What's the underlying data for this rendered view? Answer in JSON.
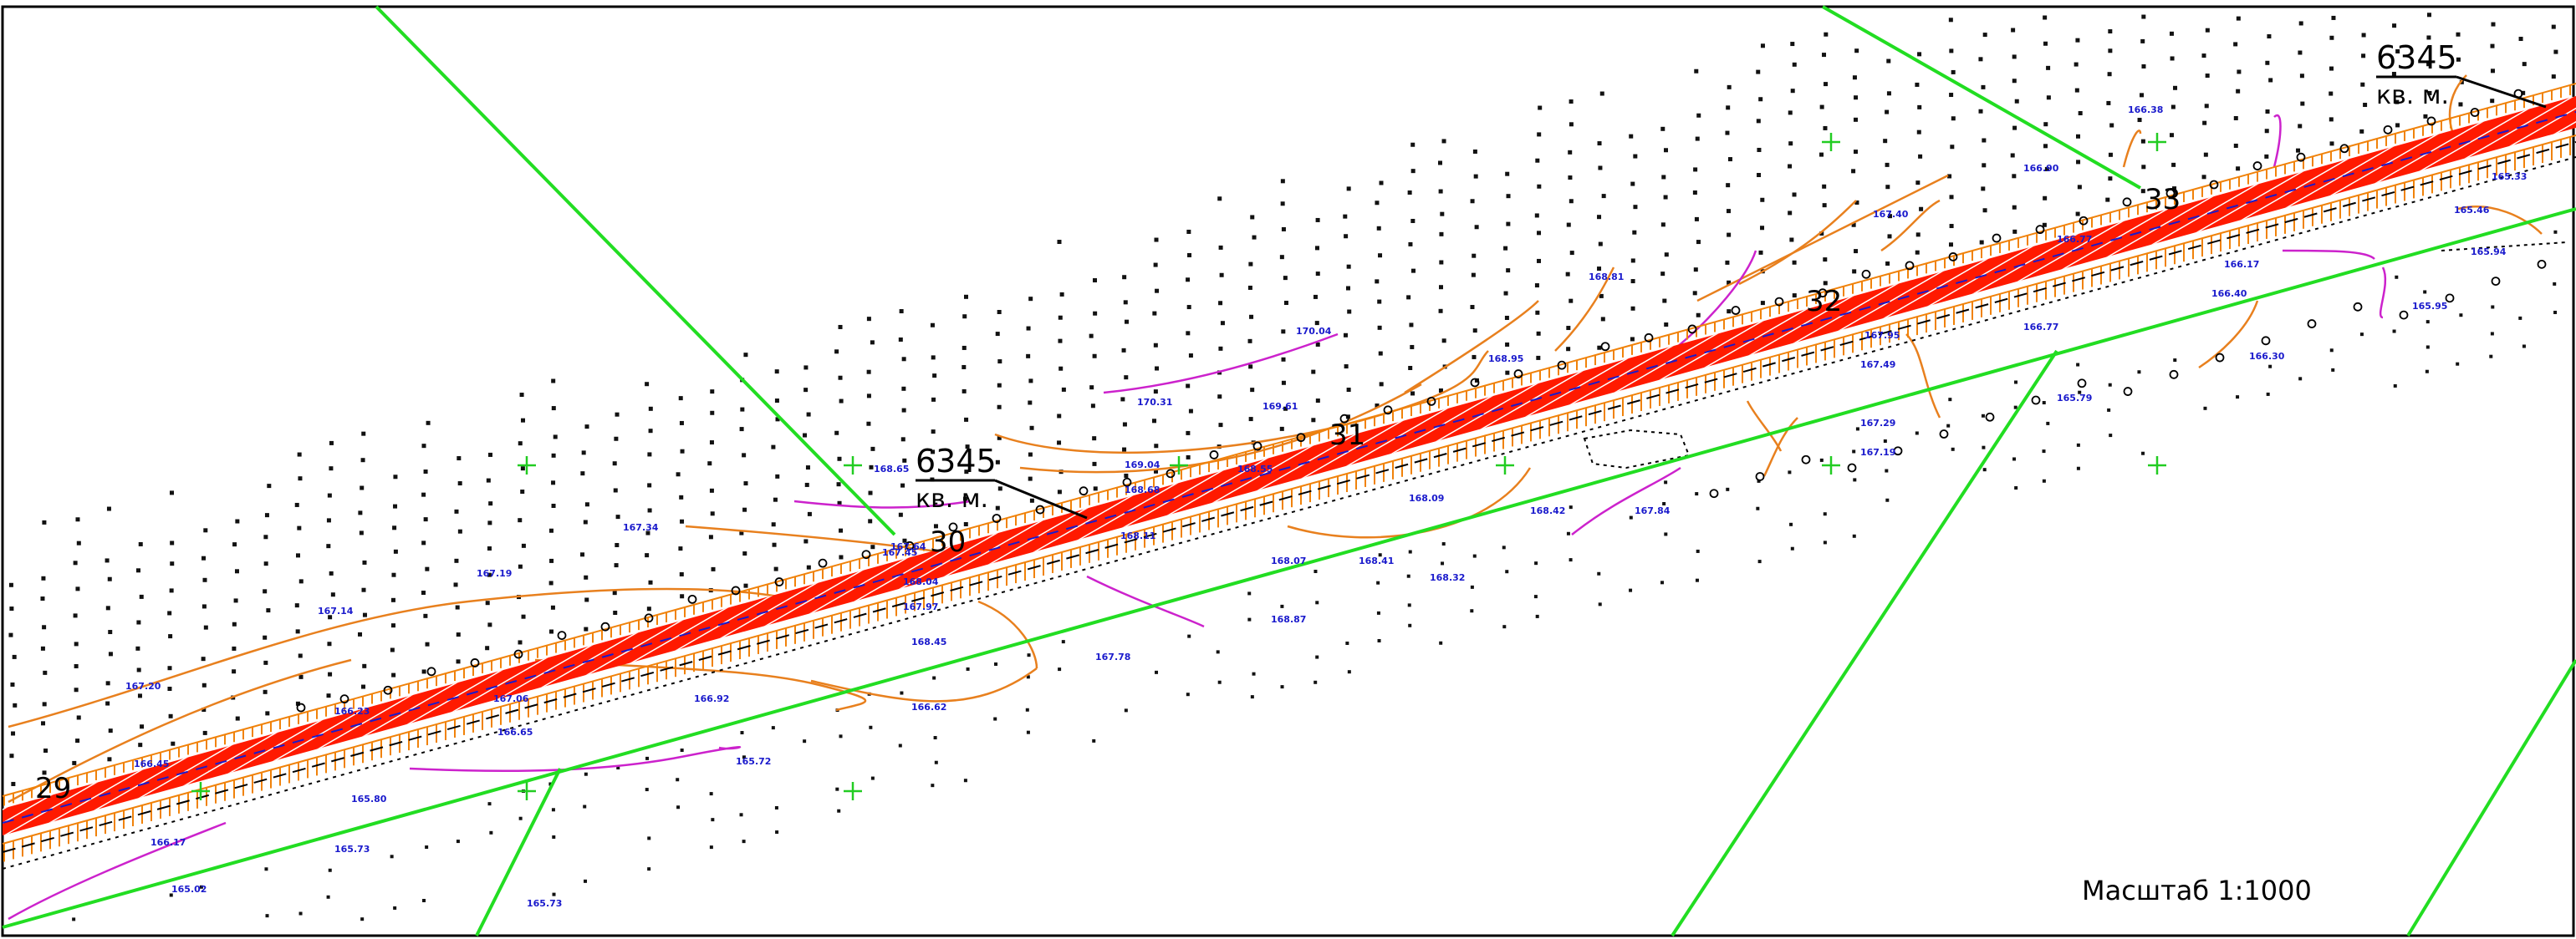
{
  "map": {
    "scale_label": "Масштаб 1:1000",
    "area_labels": [
      {
        "value": "6345",
        "unit": "кв. м."
      },
      {
        "value": "6345",
        "unit": "кв. м."
      }
    ],
    "stations": [
      "29",
      "30",
      "31",
      "32",
      "33"
    ],
    "elevations": [
      "167.20",
      "167.14",
      "167.19",
      "167.34",
      "166.45",
      "166.23",
      "166.17",
      "165.80",
      "165.73",
      "165.02",
      "165.72",
      "165.73",
      "167.06",
      "166.92",
      "166.62",
      "167.45",
      "167.78",
      "168.87",
      "168.41",
      "168.32",
      "168.09",
      "168.42",
      "167.84",
      "168.65",
      "170.04",
      "170.31",
      "169.61",
      "169.04",
      "168.95",
      "168.81",
      "167.40",
      "166.90",
      "166.77",
      "166.38",
      "165.95",
      "166.30",
      "165.79",
      "166.40",
      "166.17",
      "165.94",
      "165.46",
      "165.33",
      "167.19",
      "167.29",
      "168.04",
      "168.68",
      "167.64",
      "166.65",
      "168.45",
      "168.11",
      "168.55",
      "166.77",
      "167.95",
      "167.49",
      "168.07",
      "167.97"
    ],
    "colors": {
      "road": "#ff1a00",
      "road_hatch": "#ffffff",
      "slope": "#f0820a",
      "contour": "#e8801e",
      "boundary": "#22dd22",
      "grid_cross": "#22cc22",
      "magenta": "#cc22cc",
      "elevation_text": "#1a1acc",
      "dash_line": "#000000"
    }
  }
}
